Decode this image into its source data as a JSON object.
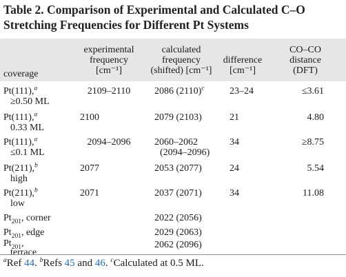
{
  "caption": "Table 2. Comparison of Experimental and Calculated C–O Stretching Frequencies for Different Pt Systems",
  "headers": {
    "coverage": "coverage",
    "experimental": [
      "experimental",
      "frequency",
      "[cm⁻¹]"
    ],
    "calculated": [
      "calculated",
      "frequency",
      "(shifted) [cm⁻¹]"
    ],
    "difference": [
      "difference",
      "[cm⁻¹]"
    ],
    "distance": [
      "CO–CO",
      "distance",
      "(DFT)"
    ]
  },
  "rows": [
    {
      "system": "Pt(111),",
      "system_mark": "a",
      "coverage": "≥0.50 ML",
      "experimental": "2109–2110",
      "calculated": "2086 (2110)",
      "calculated_mark": "c",
      "calculated_line2": "",
      "difference": "23–24",
      "distance": "≤3.61"
    },
    {
      "system": "Pt(111),",
      "system_mark": "a",
      "coverage": "0.33 ML",
      "experimental": "2100",
      "calculated": "2079 (2103)",
      "calculated_mark": "",
      "calculated_line2": "",
      "difference": "21",
      "distance": "4.80"
    },
    {
      "system": "Pt(111),",
      "system_mark": "a",
      "coverage": "≤0.1 ML",
      "experimental": "2094–2096",
      "calculated": "2060–2062",
      "calculated_mark": "",
      "calculated_line2": "(2094–2096)",
      "difference": "34",
      "distance": "≥8.75"
    },
    {
      "system": "Pt(211),",
      "system_mark": "b",
      "coverage": "high",
      "experimental": "2077",
      "calculated": "2053 (2077)",
      "calculated_mark": "",
      "calculated_line2": "",
      "difference": "24",
      "distance": "5.54"
    },
    {
      "system": "Pt(211),",
      "system_mark": "b",
      "coverage": "low",
      "experimental": "2071",
      "calculated": "2037 (2071)",
      "calculated_mark": "",
      "calculated_line2": "",
      "difference": "34",
      "distance": "11.08"
    },
    {
      "system": "Pt",
      "system_sub": "201",
      "system_rest": ", corner",
      "coverage": "",
      "experimental": "",
      "calculated": "2022 (2056)",
      "calculated_mark": "",
      "calculated_line2": "",
      "difference": "",
      "distance": ""
    },
    {
      "system": "Pt",
      "system_sub": "201",
      "system_rest": ", edge",
      "coverage": "",
      "experimental": "",
      "calculated": "2029 (2063)",
      "calculated_mark": "",
      "calculated_line2": "",
      "difference": "",
      "distance": ""
    },
    {
      "system": "Pt",
      "system_sub": "201",
      "system_rest": ",",
      "coverage": "terrace",
      "experimental": "",
      "calculated": "2062 (2096)",
      "calculated_mark": "",
      "calculated_line2": "",
      "difference": "",
      "distance": ""
    }
  ],
  "footnotes": {
    "a_mark": "a",
    "a_text": "Ref ",
    "a_ref": "44",
    "a_end": ". ",
    "b_mark": "b",
    "b_text": "Refs ",
    "b_ref1": "45",
    "b_and": " and ",
    "b_ref2": "46",
    "b_end": ". ",
    "c_mark": "c",
    "c_text": "Calculated at 0.5 ML."
  },
  "colors": {
    "header_background": "#e6e6e6",
    "link": "#2a6fb0"
  }
}
